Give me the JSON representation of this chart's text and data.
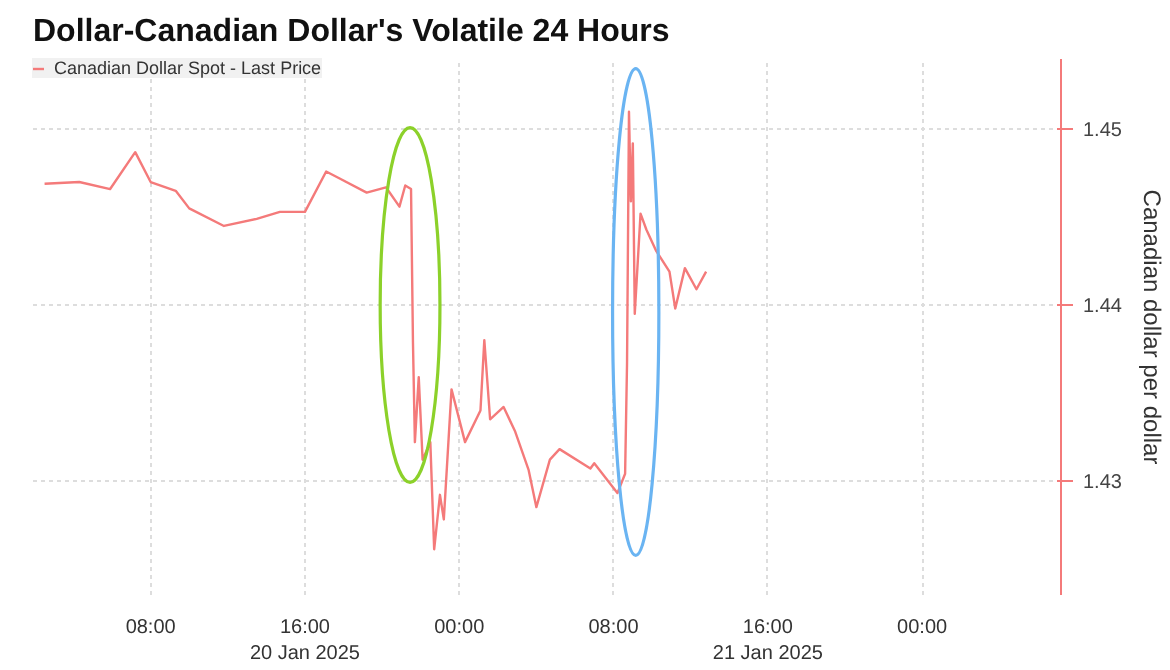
{
  "chart_data": {
    "type": "line",
    "title": "Dollar-Canadian Dollar's Volatile 24 Hours",
    "ylabel": "Canadian dollar per dollar",
    "x": [
      "2025-01-20T02:30",
      "2025-01-20T04:18",
      "2025-01-20T05:54",
      "2025-01-20T07:12",
      "2025-01-20T08:00",
      "2025-01-20T09:18",
      "2025-01-20T10:00",
      "2025-01-20T11:48",
      "2025-01-20T13:30",
      "2025-01-20T14:42",
      "2025-01-20T16:00",
      "2025-01-20T17:06",
      "2025-01-20T17:48",
      "2025-01-20T19:12",
      "2025-01-20T20:12",
      "2025-01-20T20:54",
      "2025-01-20T21:12",
      "2025-01-20T21:30",
      "2025-01-20T21:36",
      "2025-01-20T21:42",
      "2025-01-20T21:54",
      "2025-01-20T22:06",
      "2025-01-20T22:30",
      "2025-01-20T22:42",
      "2025-01-20T23:00",
      "2025-01-20T23:12",
      "2025-01-20T23:36",
      "2025-01-21T00:18",
      "2025-01-21T01:06",
      "2025-01-21T01:18",
      "2025-01-21T01:36",
      "2025-01-21T02:18",
      "2025-01-21T02:54",
      "2025-01-21T03:36",
      "2025-01-21T04:00",
      "2025-01-21T04:42",
      "2025-01-21T05:12",
      "2025-01-21T06:48",
      "2025-01-21T07:00",
      "2025-01-21T08:12",
      "2025-01-21T08:36",
      "2025-01-21T08:42",
      "2025-01-21T08:48",
      "2025-01-21T08:54",
      "2025-01-21T09:00",
      "2025-01-21T09:06",
      "2025-01-21T09:24",
      "2025-01-21T09:42",
      "2025-01-21T10:12",
      "2025-01-21T10:54",
      "2025-01-21T11:12",
      "2025-01-21T11:42",
      "2025-01-21T12:18",
      "2025-01-21T12:48"
    ],
    "series": [
      {
        "name": "Canadian Dollar Spot - Last Price",
        "color": "#f47a7a",
        "values": [
          1.4469,
          1.447,
          1.4466,
          1.4487,
          1.447,
          1.4465,
          1.4455,
          1.4445,
          1.4449,
          1.4453,
          1.4453,
          1.4476,
          1.4472,
          1.4464,
          1.4467,
          1.4456,
          1.4468,
          1.4466,
          1.4379,
          1.4322,
          1.4359,
          1.4312,
          1.4322,
          1.4261,
          1.4292,
          1.4278,
          1.4352,
          1.4322,
          1.434,
          1.438,
          1.4335,
          1.4342,
          1.4328,
          1.4306,
          1.4285,
          1.4312,
          1.4318,
          1.4307,
          1.431,
          1.4293,
          1.4304,
          1.4367,
          1.451,
          1.4459,
          1.4492,
          1.4395,
          1.4452,
          1.4443,
          1.4431,
          1.4419,
          1.4398,
          1.4421,
          1.4409,
          1.4419
        ]
      }
    ],
    "xlim": [
      "2025-01-20T01:54",
      "2025-01-22T07:12"
    ],
    "xticks": [
      {
        "value": "2025-01-20T08:00",
        "label": "08:00"
      },
      {
        "value": "2025-01-20T16:00",
        "label": "16:00\n20 Jan 2025"
      },
      {
        "value": "2025-01-21T00:00",
        "label": "00:00"
      },
      {
        "value": "2025-01-21T08:00",
        "label": "08:00"
      },
      {
        "value": "2025-01-21T16:00",
        "label": "16:00\n21 Jan 2025"
      },
      {
        "value": "2025-01-22T00:00",
        "label": "00:00"
      }
    ],
    "ylim": [
      1.4235,
      1.454
    ],
    "yticks": [
      1.43,
      1.44,
      1.45
    ],
    "grid": true,
    "legend": "top left",
    "line_style": "solid"
  }
}
